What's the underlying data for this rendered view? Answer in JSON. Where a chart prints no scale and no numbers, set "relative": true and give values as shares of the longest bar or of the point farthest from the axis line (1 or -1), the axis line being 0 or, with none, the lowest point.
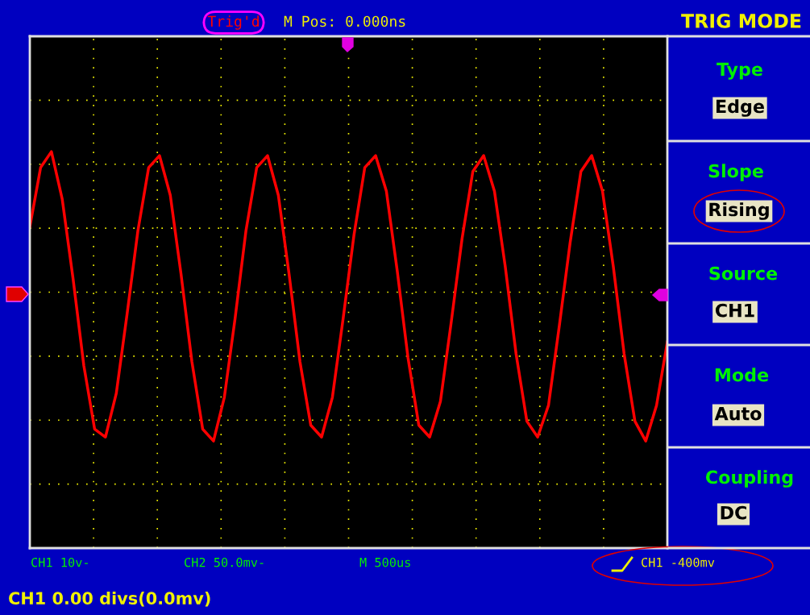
{
  "chart_data": {
    "type": "line",
    "title": "TRIG MODE",
    "relative": true,
    "grid": true,
    "tick_labels": false,
    "categories": [
      null,
      null,
      null,
      null,
      null,
      null,
      null,
      null,
      null,
      null,
      null,
      null,
      null,
      null,
      null,
      null,
      null,
      null,
      null,
      null,
      null,
      null,
      null,
      null,
      null,
      null,
      null,
      null,
      null,
      null,
      null,
      null,
      null,
      null,
      null,
      null,
      null,
      null,
      null,
      null,
      null,
      null,
      null,
      null,
      null,
      null,
      null,
      null,
      null,
      null,
      null,
      null,
      null,
      null,
      null,
      null,
      null,
      null,
      null,
      null
    ],
    "series": [
      {
        "color": "#ff0000",
        "values": [
          0.81,
          0.96,
          1.0,
          0.88,
          0.68,
          0.46,
          0.3,
          0.28,
          0.39,
          0.59,
          0.8,
          0.96,
          0.99,
          0.89,
          0.69,
          0.47,
          0.3,
          0.27,
          0.38,
          0.58,
          0.8,
          0.96,
          0.99,
          0.89,
          0.69,
          0.47,
          0.31,
          0.28,
          0.38,
          0.58,
          0.79,
          0.96,
          0.99,
          0.9,
          0.7,
          0.48,
          0.31,
          0.28,
          0.37,
          0.57,
          0.78,
          0.95,
          0.99,
          0.9,
          0.71,
          0.49,
          0.32,
          0.28,
          0.36,
          0.56,
          0.77,
          0.95,
          0.99,
          0.9,
          0.71,
          0.49,
          0.32,
          0.27,
          0.36,
          0.52
        ]
      }
    ],
    "annotations": [
      "Trig'd",
      "M Pos: 0.000ns",
      "Type",
      "Edge",
      "Slope",
      "Rising",
      "Source",
      "CH1",
      "Mode",
      "Auto",
      "Coupling",
      "DC",
      "CH1 10v-",
      "CH2 50.0mv-",
      "M 500us",
      "CH1 -400mv",
      "CH1 0.00 divs(0.0mv)"
    ]
  }
}
